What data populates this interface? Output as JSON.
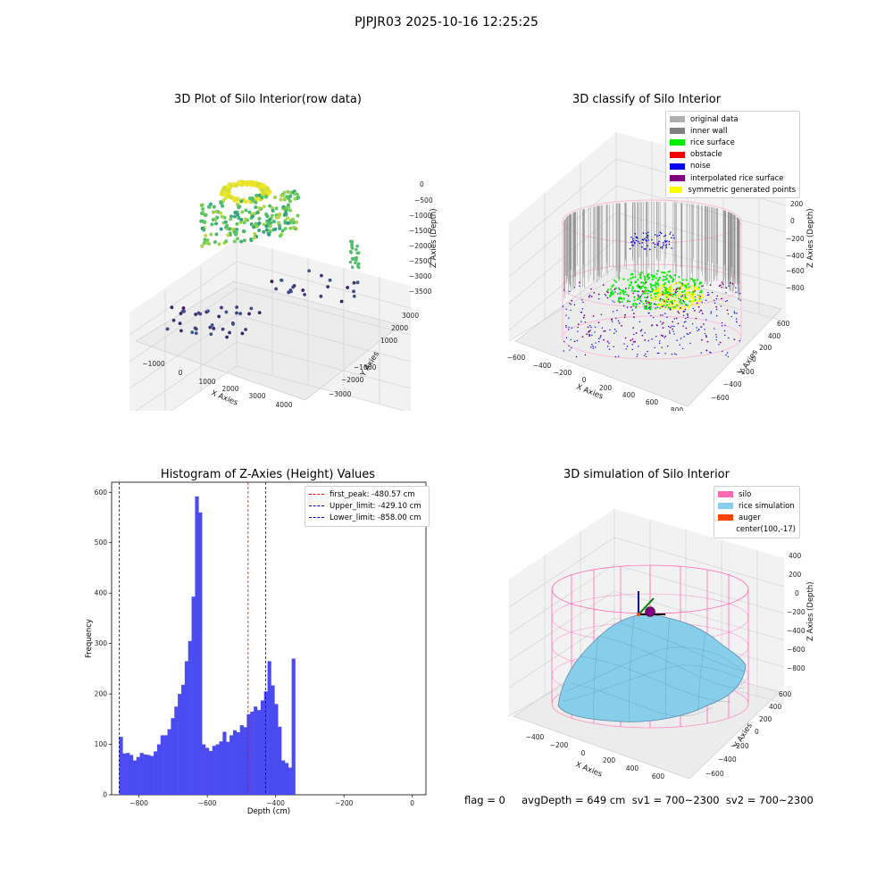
{
  "suptitle": "PJPJR03 2025-10-16 12:25:25",
  "panels": {
    "raw": {
      "title": "3D Plot of Silo Interior(row data)",
      "xlabel": "X Axies",
      "ylabel": "Y Axies",
      "zlabel": "Z Axies (Depth)",
      "xticks": [
        "−1000",
        "0",
        "1000",
        "2000",
        "3000",
        "4000"
      ],
      "yticks": [
        "3000",
        "2000",
        "1000",
        "−1000",
        "−2000",
        "−3000"
      ],
      "zticks": [
        "0",
        "−500",
        "−1000",
        "−1500",
        "−2000",
        "−2500",
        "−3000",
        "−3500"
      ]
    },
    "classify": {
      "title": "3D classify of Silo Interior",
      "xlabel": "X Axies",
      "ylabel": "Y Axies",
      "zlabel": "Z Axies (Depth)",
      "xticks": [
        "−600",
        "−400",
        "−200",
        "0",
        "200",
        "400",
        "600",
        "800"
      ],
      "yticks": [
        "600",
        "400",
        "200",
        "0",
        "−200",
        "−400",
        "−600"
      ],
      "zticks": [
        "200",
        "0",
        "−200",
        "−400",
        "−600",
        "−800"
      ],
      "legend": [
        {
          "label": "original data",
          "color": "#b0b0b0"
        },
        {
          "label": "inner wall",
          "color": "#808080"
        },
        {
          "label": "rice surface",
          "color": "#00ee00"
        },
        {
          "label": "obstacle",
          "color": "#ee0000"
        },
        {
          "label": "noise",
          "color": "#0000ee"
        },
        {
          "label": "interpolated rice surface",
          "color": "#800080"
        },
        {
          "label": "symmetric generated points",
          "color": "#ffff00"
        }
      ]
    },
    "histogram": {
      "title": "Histogram of Z-Axies (Height) Values",
      "xlabel": "Depth (cm)",
      "ylabel": "Frequency",
      "legend": [
        {
          "label": "first_peak: -480.57 cm",
          "color": "#ff0000"
        },
        {
          "label": "Upper_limit: -429.10 cm",
          "color": "#0000cc"
        },
        {
          "label": "Lower_limit: -858.00 cm",
          "color": "#0000cc"
        }
      ]
    },
    "simulation": {
      "title": "3D simulation of Silo Interior",
      "xlabel": "X Axies",
      "ylabel": "Y Axies",
      "zlabel": "Z Axies (Depth)",
      "xticks": [
        "−400",
        "−200",
        "0",
        "200",
        "400",
        "600"
      ],
      "yticks": [
        "600",
        "400",
        "200",
        "0",
        "−200",
        "−400",
        "−600"
      ],
      "zticks": [
        "400",
        "200",
        "0",
        "−200",
        "−400",
        "−600",
        "−800"
      ],
      "legend": [
        {
          "label": "silo",
          "color": "#ff69b4"
        },
        {
          "label": "rice simulation",
          "color": "#87ceeb"
        },
        {
          "label": "auger",
          "color": "#ff4500"
        },
        {
          "label": "center(100,-17)",
          "color": ""
        }
      ]
    }
  },
  "flag_text": "flag = 0     avgDepth = 649 cm  sv1 = 700~2300  sv2 = 700~2300",
  "chart_data": [
    {
      "type": "scatter",
      "title": "3D Plot of Silo Interior(row data)",
      "xlabel": "X Axies",
      "ylabel": "Y Axies",
      "zlabel": "Z Axies (Depth)",
      "xlim": [
        -1500,
        4500
      ],
      "ylim": [
        -3500,
        3500
      ],
      "zlim": [
        -3800,
        300
      ],
      "colormap": "viridis",
      "clusters": [
        {
          "name": "",
          "x": [
            -500,
            200
          ],
          "y": [
            -500,
            500
          ],
          "z": [
            -400,
            0
          ]
        },
        {
          "name": "",
          "x": [
            -1000,
            1000
          ],
          "y": [
            -1500,
            1500
          ],
          "z": [
            -2000,
            -400
          ]
        },
        {
          "name": "",
          "x": [
            -1000,
            4000
          ],
          "y": [
            -3000,
            3000
          ],
          "z": [
            -3800,
            -2500
          ]
        }
      ]
    },
    {
      "type": "scatter",
      "title": "3D classify of Silo Interior",
      "xlabel": "X Axies",
      "ylabel": "Y Axies",
      "zlabel": "Z Axies (Depth)",
      "xlim": [
        -700,
        850
      ],
      "ylim": [
        -700,
        700
      ],
      "zlim": [
        -900,
        300
      ],
      "series": [
        {
          "name": "original data",
          "color": "#b0b0b0"
        },
        {
          "name": "inner wall",
          "color": "#808080"
        },
        {
          "name": "rice surface",
          "color": "#00ee00"
        },
        {
          "name": "obstacle",
          "color": "#ee0000"
        },
        {
          "name": "noise",
          "color": "#0000ee"
        },
        {
          "name": "interpolated rice surface",
          "color": "#800080"
        },
        {
          "name": "symmetric generated points",
          "color": "#ffff00"
        }
      ]
    },
    {
      "type": "bar",
      "title": "Histogram of Z-Axies (Height) Values",
      "xlabel": "Depth (cm)",
      "ylabel": "Frequency",
      "xlim": [
        -880,
        40
      ],
      "ylim": [
        0,
        620
      ],
      "xticks": [
        -800,
        -600,
        -400,
        -200,
        0
      ],
      "yticks": [
        0,
        100,
        200,
        300,
        400,
        500,
        600
      ],
      "bin_start": -858,
      "bin_width": 10.1,
      "values": [
        115,
        82,
        83,
        79,
        68,
        75,
        83,
        80,
        79,
        77,
        86,
        100,
        118,
        118,
        130,
        152,
        175,
        200,
        218,
        265,
        305,
        393,
        592,
        560,
        100,
        93,
        87,
        97,
        100,
        106,
        125,
        105,
        118,
        128,
        124,
        138,
        134,
        160,
        165,
        175,
        168,
        187,
        205,
        265,
        217,
        180,
        135,
        68,
        63,
        54,
        270
      ],
      "bar_color": "#4b4bf2",
      "vlines": [
        {
          "name": "first_peak: -480.57 cm",
          "x": -480.57,
          "color": "#ff0000"
        },
        {
          "name": "Upper_limit: -429.10 cm",
          "x": -429.1,
          "color": "#0000cc"
        },
        {
          "name": "Lower_limit: -858.00 cm",
          "x": -858.0,
          "color": "#0000cc"
        }
      ],
      "legend_position": "top-right"
    },
    {
      "type": "area",
      "title": "3D simulation of Silo Interior",
      "xlabel": "X Axies",
      "ylabel": "Y Axies",
      "zlabel": "Z Axies (Depth)",
      "xlim": [
        -550,
        700
      ],
      "ylim": [
        -700,
        700
      ],
      "zlim": [
        -900,
        500
      ],
      "series": [
        {
          "name": "silo",
          "color": "#ff69b4"
        },
        {
          "name": "rice simulation",
          "color": "#87ceeb"
        },
        {
          "name": "auger",
          "color": "#ff4500"
        }
      ],
      "center": [
        100,
        -17
      ]
    }
  ]
}
